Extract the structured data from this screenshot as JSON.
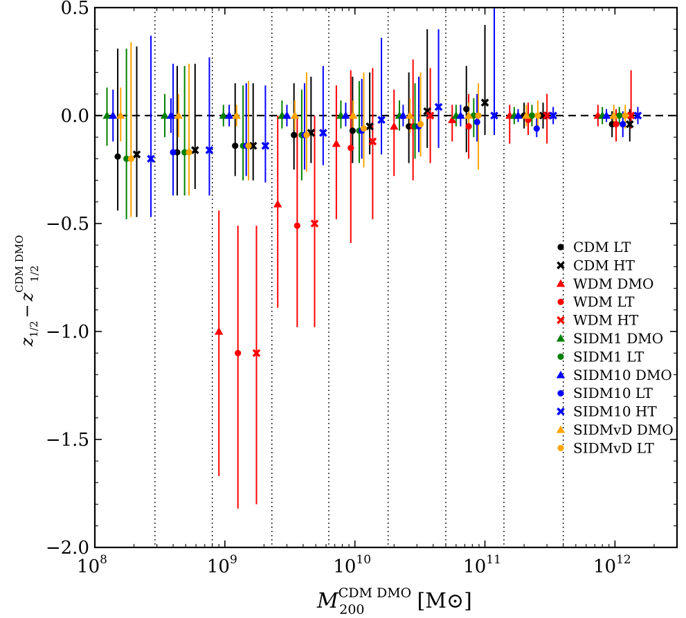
{
  "chart_data": {
    "type": "scatter",
    "x_scale": "log",
    "xlim": [
      100000000,
      3000000000000
    ],
    "ylim": [
      -2.0,
      0.5
    ],
    "yticks": [
      0.5,
      0.0,
      -0.5,
      -1.0,
      -1.5,
      -2.0
    ],
    "ytick_labels": [
      "0.5",
      "0.0",
      "−0.5",
      "−1.0",
      "−1.5",
      "−2.0"
    ],
    "xticks": [
      100000000,
      1000000000,
      10000000000,
      100000000000,
      1000000000000
    ],
    "xtick_bases": [
      "10",
      "10",
      "10",
      "10",
      "10"
    ],
    "xtick_exps": [
      "8",
      "9",
      "10",
      "11",
      "12"
    ],
    "xlabel": {
      "main": "M",
      "sub": "200",
      "sup": "CDM DMO",
      "unit": "[M⊙]"
    },
    "ylabel": {
      "main": "z",
      "sub1": "1/2",
      "minus": "−",
      "sup": "CDM DMO",
      "sub2": "1/2"
    },
    "bin_edges": [
      290000000,
      800000000,
      2300000000,
      6300000000,
      18000000000,
      50000000000,
      140000000000,
      400000000000
    ],
    "reference_line_y": 0.0,
    "grid": false,
    "legend_position": "right",
    "colors": {
      "black": "#000000",
      "red": "#ff0000",
      "green": "#008000",
      "blue": "#0000ff",
      "orange": "#ffa500"
    },
    "series": [
      {
        "name": "CDM LT",
        "color": "#000000",
        "marker": "circle",
        "points": [
          [
            150000000,
            -0.19,
            -0.44,
            0.31
          ],
          [
            430000000,
            -0.17,
            -0.37,
            0.23
          ],
          [
            1200000000,
            -0.14,
            -0.28,
            0.15
          ],
          [
            3400000000,
            -0.09,
            -0.25,
            0.15
          ],
          [
            9600000000,
            -0.07,
            -0.22,
            0.18
          ],
          [
            26000000000,
            -0.05,
            -0.22,
            0.2
          ],
          [
            72000000000,
            0.03,
            -0.17,
            0.23
          ],
          [
            200000000000,
            0.0,
            -0.06,
            0.06
          ],
          [
            950000000000,
            -0.04,
            -0.1,
            0.02
          ]
        ]
      },
      {
        "name": "CDM HT",
        "color": "#000000",
        "marker": "x",
        "points": [
          [
            210000000,
            -0.18,
            -0.47,
            0.32
          ],
          [
            590000000,
            -0.16,
            -0.34,
            0.24
          ],
          [
            1650000000,
            -0.14,
            -0.3,
            0.15
          ],
          [
            4600000000,
            -0.08,
            -0.22,
            0.18
          ],
          [
            13000000000,
            -0.05,
            -0.18,
            0.2
          ],
          [
            36000000000,
            0.02,
            -0.15,
            0.4
          ],
          [
            100000000000,
            0.06,
            -0.09,
            0.42
          ],
          [
            280000000000,
            0.0,
            -0.06,
            0.06
          ],
          [
            1300000000000,
            -0.04,
            -0.12,
            0.03
          ]
        ]
      },
      {
        "name": "WDM DMO",
        "color": "#ff0000",
        "marker": "triangle",
        "points": [
          [
            900000000,
            -1.0,
            -1.67,
            -0.44
          ],
          [
            2550000000,
            -0.41,
            -0.89,
            0.0
          ],
          [
            7200000000,
            -0.13,
            -0.48,
            0.14
          ],
          [
            20000000000,
            -0.05,
            -0.28,
            0.12
          ],
          [
            56000000000,
            -0.02,
            -0.12,
            0.05
          ],
          [
            155000000000,
            0.0,
            -0.13,
            0.05
          ],
          [
            740000000000,
            0.0,
            -0.05,
            0.05
          ]
        ]
      },
      {
        "name": "WDM LT",
        "color": "#ff0000",
        "marker": "circle",
        "points": [
          [
            1260000000,
            -1.1,
            -1.82,
            -0.51
          ],
          [
            3600000000,
            -0.51,
            -0.98,
            0.0
          ],
          [
            9300000000,
            -0.15,
            -0.59,
            0.21
          ],
          [
            28000000000,
            -0.05,
            -0.3,
            0.26
          ],
          [
            75000000000,
            -0.05,
            -0.2,
            0.1
          ],
          [
            215000000000,
            -0.02,
            -0.09,
            0.06
          ],
          [
            1020000000000,
            -0.04,
            -0.12,
            0.03
          ]
        ]
      },
      {
        "name": "WDM HT",
        "color": "#ff0000",
        "marker": "x",
        "points": [
          [
            1750000000,
            -1.1,
            -1.8,
            -0.51
          ],
          [
            4900000000,
            -0.5,
            -0.98,
            0.0
          ],
          [
            13700000000,
            -0.12,
            -0.48,
            0.22
          ],
          [
            38000000000,
            0.0,
            -0.22,
            0.22
          ],
          [
            300000000000,
            0.0,
            -0.13,
            0.1
          ],
          [
            1330000000000,
            0.0,
            -0.06,
            0.21
          ]
        ]
      },
      {
        "name": "SIDM1 DMO",
        "color": "#008000",
        "marker": "triangle",
        "points": [
          [
            124000000,
            0.0,
            -0.14,
            0.13
          ],
          [
            345000000,
            0.0,
            -0.1,
            0.1
          ],
          [
            975000000,
            0.0,
            -0.05,
            0.05
          ],
          [
            2750000000,
            0.0,
            -0.06,
            0.07
          ],
          [
            7800000000,
            0.0,
            -0.06,
            0.07
          ],
          [
            22000000000,
            0.0,
            -0.07,
            0.07
          ],
          [
            60000000000,
            0.0,
            -0.05,
            0.05
          ],
          [
            168000000000,
            0.0,
            -0.04,
            0.04
          ],
          [
            800000000000,
            0.0,
            -0.04,
            0.04
          ]
        ]
      },
      {
        "name": "SIDM1 LT",
        "color": "#008000",
        "marker": "circle",
        "points": [
          [
            175000000,
            -0.2,
            -0.48,
            0.31
          ],
          [
            490000000,
            -0.17,
            -0.37,
            0.23
          ],
          [
            1380000000,
            -0.14,
            -0.3,
            0.14
          ],
          [
            3900000000,
            -0.09,
            -0.3,
            0.12
          ],
          [
            10800000000,
            -0.07,
            -0.22,
            0.16
          ],
          [
            29000000000,
            -0.05,
            -0.2,
            0.15
          ],
          [
            82000000000,
            0.0,
            -0.1,
            0.08
          ],
          [
            230000000000,
            0.0,
            -0.05,
            0.05
          ],
          [
            1080000000000,
            0.0,
            -0.04,
            0.04
          ]
        ]
      },
      {
        "name": "SIDM10 DMO",
        "color": "#0000ff",
        "marker": "triangle",
        "points": [
          [
            138000000,
            0.0,
            -0.12,
            0.12
          ],
          [
            385000000,
            0.0,
            -0.08,
            0.08
          ],
          [
            1080000000,
            0.0,
            -0.05,
            0.05
          ],
          [
            3000000000,
            0.0,
            -0.05,
            0.05
          ],
          [
            8500000000,
            0.0,
            -0.05,
            0.06
          ],
          [
            23500000000,
            0.0,
            -0.05,
            0.05
          ],
          [
            65000000000,
            0.0,
            -0.05,
            0.05
          ],
          [
            180000000000,
            0.0,
            -0.03,
            0.03
          ],
          [
            860000000000,
            0.0,
            -0.03,
            0.03
          ]
        ]
      },
      {
        "name": "SIDM10 LT",
        "color": "#0000ff",
        "marker": "circle",
        "points": [
          [
            400000000,
            -0.17,
            -0.37,
            0.24
          ],
          [
            1460000000,
            -0.14,
            -0.28,
            0.15
          ],
          [
            4100000000,
            -0.09,
            -0.25,
            0.15
          ],
          [
            11300000000,
            -0.07,
            -0.2,
            0.17
          ],
          [
            31000000000,
            -0.05,
            -0.17,
            0.18
          ],
          [
            87000000000,
            -0.03,
            -0.12,
            0.1
          ],
          [
            250000000000,
            -0.06,
            -0.1,
            0.0
          ],
          [
            1150000000000,
            -0.04,
            -0.1,
            0.02
          ]
        ]
      },
      {
        "name": "SIDM10 HT",
        "color": "#0000ff",
        "marker": "x",
        "points": [
          [
            270000000,
            -0.2,
            -0.47,
            0.37
          ],
          [
            760000000,
            -0.16,
            -0.37,
            0.27
          ],
          [
            2050000000,
            -0.14,
            -0.31,
            0.14
          ],
          [
            5700000000,
            -0.08,
            -0.23,
            0.23
          ],
          [
            16000000000,
            -0.02,
            -0.18,
            0.36
          ],
          [
            44000000000,
            0.04,
            -0.15,
            0.4
          ],
          [
            118000000000,
            0.0,
            -0.09,
            0.5
          ],
          [
            335000000000,
            0.0,
            -0.04,
            0.04
          ],
          [
            1500000000000,
            0.0,
            -0.04,
            0.04
          ]
        ]
      },
      {
        "name": "SIDMvD DMO",
        "color": "#ffa500",
        "marker": "triangle",
        "points": [
          [
            158000000,
            0.0,
            -0.12,
            0.13
          ],
          [
            440000000,
            0.0,
            -0.1,
            0.1
          ],
          [
            1230000000,
            0.0,
            -0.05,
            0.05
          ],
          [
            3450000000,
            0.0,
            -0.07,
            0.07
          ],
          [
            9700000000,
            0.0,
            -0.07,
            0.07
          ],
          [
            26500000000,
            0.0,
            -0.08,
            0.08
          ],
          [
            75000000000,
            0.0,
            -0.06,
            0.06
          ],
          [
            208000000000,
            0.0,
            -0.05,
            0.05
          ],
          [
            980000000000,
            0.0,
            -0.05,
            0.05
          ]
        ]
      },
      {
        "name": "SIDMvD LT",
        "color": "#ffa500",
        "marker": "circle",
        "points": [
          [
            190000000,
            -0.2,
            -0.47,
            0.34
          ],
          [
            530000000,
            -0.17,
            -0.37,
            0.24
          ],
          [
            1520000000,
            -0.14,
            -0.3,
            0.16
          ],
          [
            4250000000,
            -0.09,
            -0.26,
            0.2
          ],
          [
            11700000000,
            -0.06,
            -0.24,
            0.2
          ],
          [
            32000000000,
            -0.04,
            -0.19,
            0.2
          ],
          [
            89000000000,
            0.0,
            -0.25,
            0.15
          ],
          [
            255000000000,
            0.0,
            -0.06,
            0.07
          ],
          [
            1200000000000,
            0.0,
            -0.06,
            0.05
          ]
        ]
      }
    ]
  }
}
